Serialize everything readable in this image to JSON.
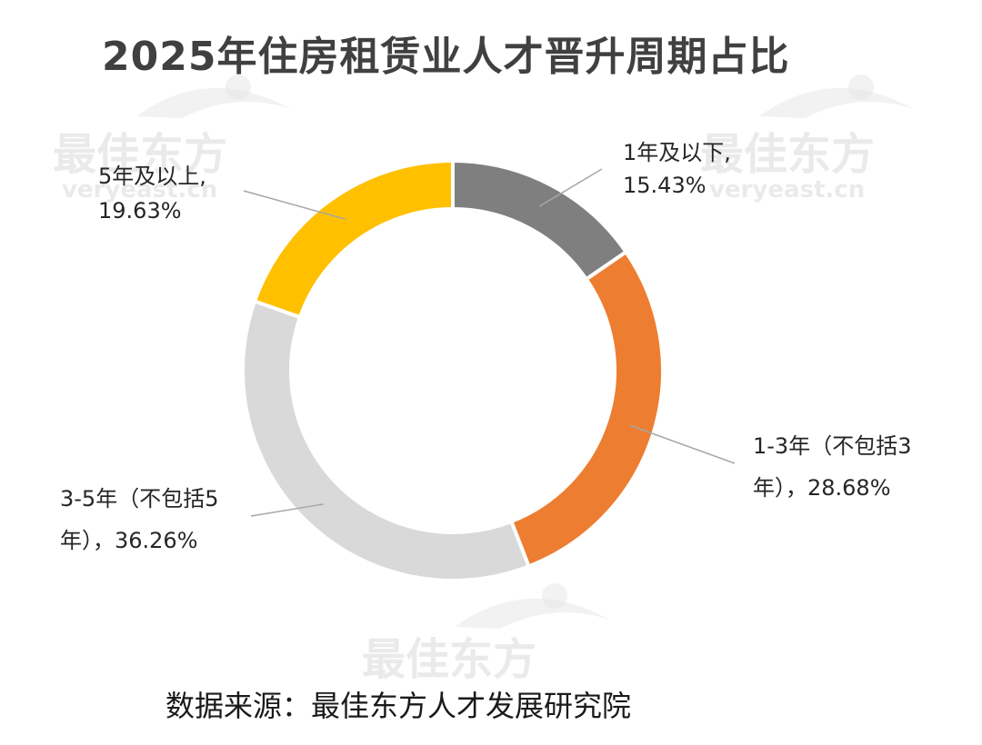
{
  "title": "2025年住房租赁业人才晋升周期占比",
  "source": "数据来源：最佳东方人才发展研究院",
  "watermark": {
    "brand": "最佳东方",
    "url": "veryeast.cn"
  },
  "chart_data": {
    "type": "pie",
    "variant": "donut",
    "title": "2025年住房租赁业人才晋升周期占比",
    "categories": [
      "1年及以下",
      "1-3年（不包括3年）",
      "3-5年（不包括5年）",
      "5年及以上"
    ],
    "values": [
      15.43,
      28.68,
      36.26,
      19.63
    ],
    "unit": "%",
    "colors": [
      "#7f7f7f",
      "#ed7d31",
      "#d9d9d9",
      "#ffc000"
    ],
    "labels": [
      {
        "lines": [
          "1年及以下,",
          "15.43%"
        ],
        "anchor": "start"
      },
      {
        "lines": [
          "1-3年（不包括3",
          "年），28.68%"
        ],
        "anchor": "start"
      },
      {
        "lines": [
          "3-5年（不包括5",
          "年），36.26%"
        ],
        "anchor": "start"
      },
      {
        "lines": [
          "5年及以上,",
          "19.63%"
        ],
        "anchor": "start"
      }
    ],
    "legend": "none"
  }
}
